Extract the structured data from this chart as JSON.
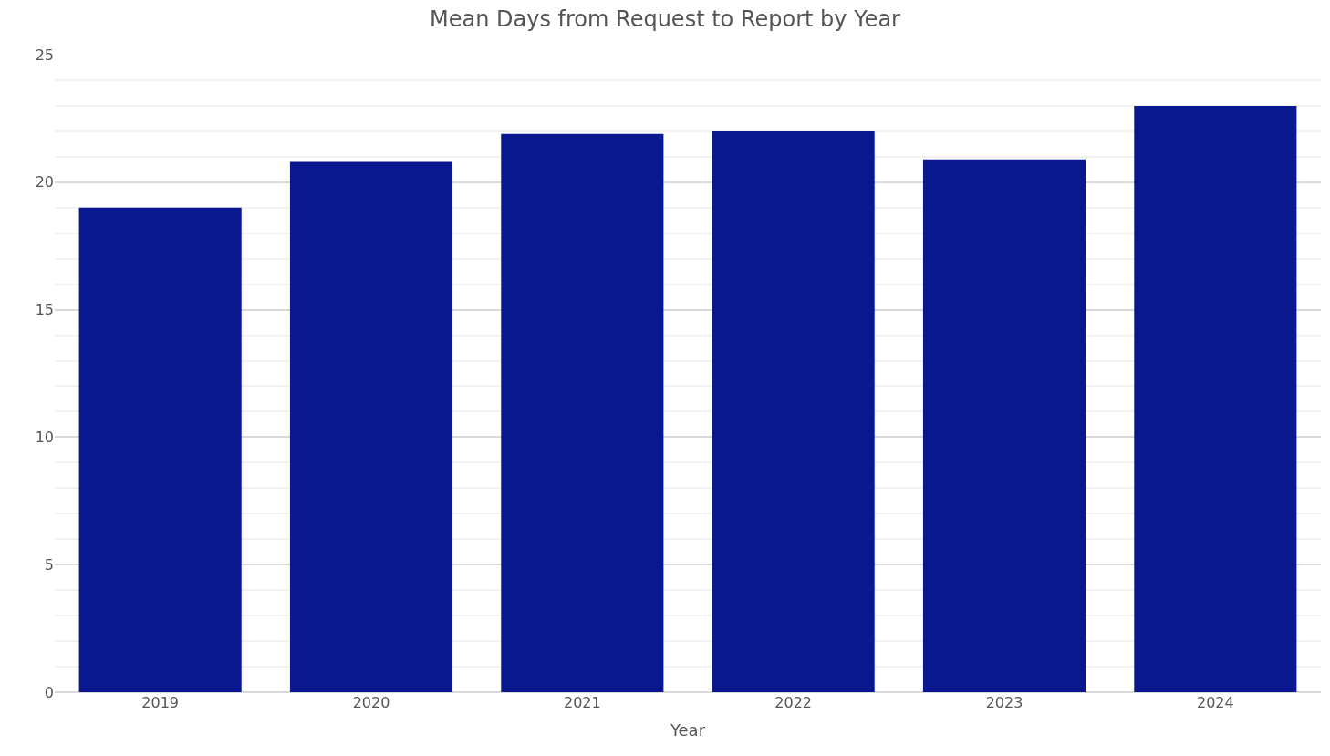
{
  "chart_data": {
    "type": "bar",
    "title": "Mean Days from Request to Report by Year",
    "xlabel": "Year",
    "categories": [
      "2019",
      "2020",
      "2021",
      "2022",
      "2023",
      "2024"
    ],
    "values": [
      19.0,
      20.8,
      21.9,
      22.0,
      20.9,
      23.0
    ],
    "color": "#0a1890",
    "ylim": [
      0,
      25
    ],
    "yticks": [
      0,
      5,
      10,
      15,
      20,
      25
    ],
    "grid": "y"
  }
}
